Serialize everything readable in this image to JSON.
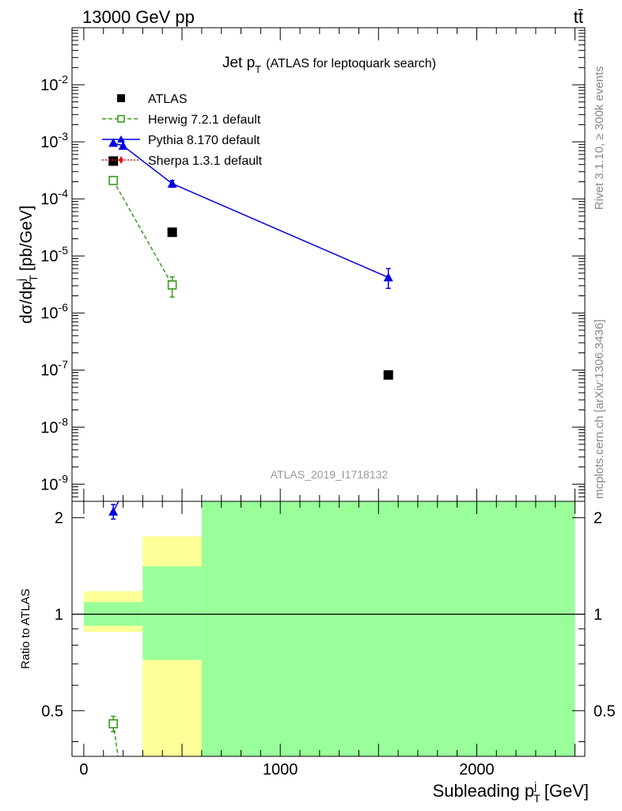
{
  "header": {
    "energy": "13000 GeV pp",
    "process": "tt̄"
  },
  "side_labels": {
    "rivet": "Rivet 3.1.10, ≥ 300k events",
    "mcplots": "mcplots.cern.ch [arXiv:1306.3436]"
  },
  "analysis_id": "ATLAS_2019_I1718132",
  "chart_data": [
    {
      "type": "scatter",
      "panel": "main",
      "title": "Jet p_T",
      "title_main": "Jet p",
      "title_sub": "T",
      "title_suffix": "(ATLAS for leptoquark search)",
      "ylabel": "dσ/dp_T^j [pb/GeV]",
      "ylabel_parts": {
        "a": "dσ/dp",
        "sup": "j",
        "sub": "T",
        "b": "[pb/GeV]"
      },
      "yscale": "log",
      "ylim": [
        5e-10,
        0.1
      ],
      "xlim": [
        -60,
        2550
      ],
      "y_tick_exponents": [
        -9,
        -8,
        -7,
        -6,
        -5,
        -4,
        -3,
        -2
      ],
      "legend": {
        "position": "top-left"
      },
      "series": [
        {
          "name": "ATLAS",
          "color": "#000000",
          "marker": "filled-square",
          "line": "none",
          "points": [
            {
              "x": 150,
              "y": 0.00046
            },
            {
              "x": 450,
              "y": 2.6e-05
            },
            {
              "x": 1550,
              "y": 8.2e-08
            }
          ]
        },
        {
          "name": "Herwig 7.2.1 default",
          "color": "#3a9a1e",
          "marker": "open-square",
          "line": "dashed",
          "points": [
            {
              "x": 150,
              "y": 0.00021,
              "yerr": [
                0.00018,
                0.00024
              ]
            },
            {
              "x": 450,
              "y": 3.1e-06,
              "yerr": [
                1.9e-06,
                4.3e-06
              ]
            }
          ]
        },
        {
          "name": "Pythia 8.170 default",
          "color": "#0000dd",
          "marker": "filled-triangle",
          "line": "solid",
          "points": [
            {
              "x": 150,
              "y": 0.00096
            },
            {
              "x": 200,
              "y": 0.00085
            },
            {
              "x": 450,
              "y": 0.000185,
              "yerr": [
                0.00016,
                0.00021
              ]
            },
            {
              "x": 1550,
              "y": 4.2e-06,
              "yerr": [
                2.7e-06,
                6e-06
              ]
            }
          ]
        },
        {
          "name": "Sherpa 1.3.1 default",
          "color": "#ee1111",
          "marker": "filled-diamond",
          "line": "dotted",
          "points": []
        }
      ]
    },
    {
      "type": "scatter",
      "panel": "ratio",
      "ylabel": "Ratio to ATLAS",
      "xlabel": "Subleading p_T^j [GeV]",
      "xlabel_parts": {
        "a": "Subleading p",
        "sup": "j",
        "sub": "T",
        "b": "[GeV]"
      },
      "ylim": [
        0.36,
        2.25
      ],
      "xlim": [
        -60,
        2550
      ],
      "x_ticks": [
        0,
        1000,
        2000
      ],
      "y_ticks": [
        0.5,
        1,
        2
      ],
      "reference_line": 1.0,
      "bands": [
        {
          "x": [
            0,
            300
          ],
          "yellow": [
            0.88,
            1.18
          ],
          "green": [
            0.92,
            1.09
          ]
        },
        {
          "x": [
            300,
            600
          ],
          "yellow": [
            0.3,
            1.75
          ],
          "green": [
            0.72,
            1.41
          ]
        },
        {
          "x": [
            600,
            2500
          ],
          "yellow": [
            0.3,
            3.0
          ],
          "green": [
            0.3,
            3.0
          ]
        }
      ],
      "series": [
        {
          "name": "Herwig 7.2.1 default",
          "color": "#3a9a1e",
          "points": [
            {
              "x": 150,
              "y": 0.455,
              "yerr": [
                0.43,
                0.48
              ]
            }
          ],
          "dashed_to": {
            "x": 180,
            "y": 0.34
          }
        },
        {
          "name": "Pythia 8.170 default",
          "color": "#0000dd",
          "points": [
            {
              "x": 150,
              "y": 2.09,
              "yerr": [
                1.98,
                2.2
              ]
            }
          ],
          "solid_to": {
            "x": 200,
            "y": 2.4
          }
        }
      ]
    }
  ]
}
